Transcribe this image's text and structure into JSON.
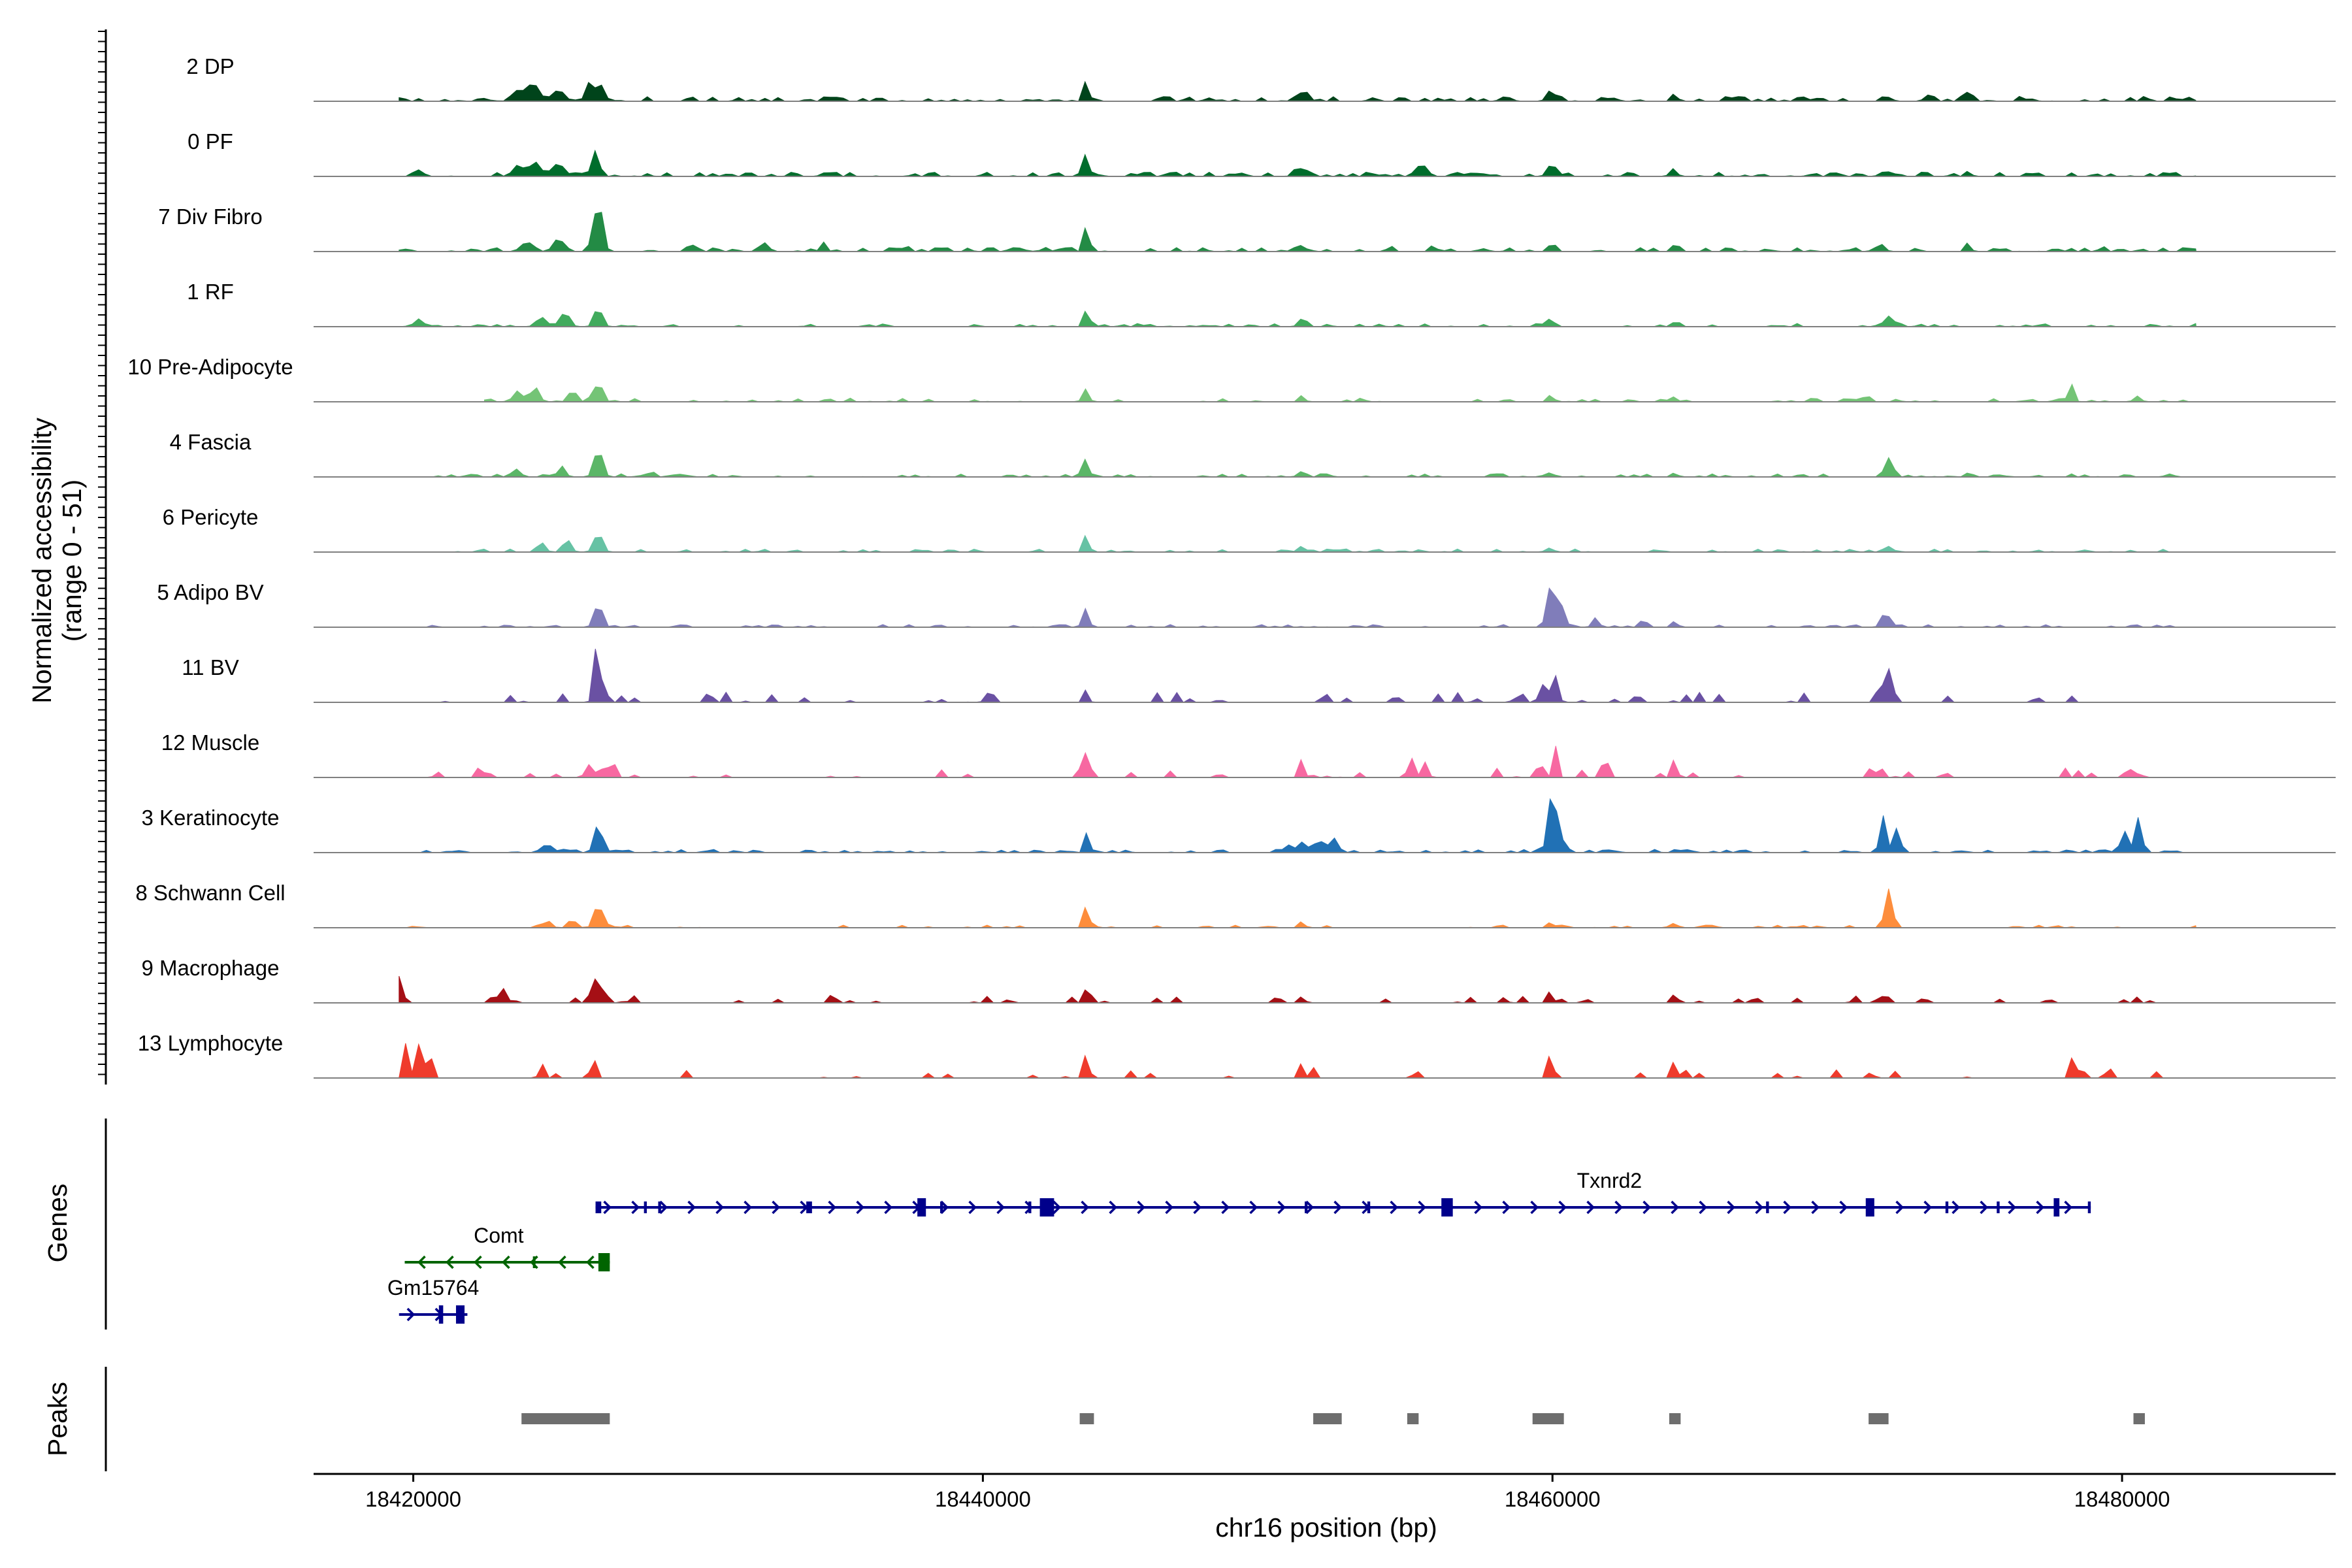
{
  "chart_data": {
    "type": "area",
    "title": "",
    "ylabel_line1": "Normalized accessibility",
    "ylabel_line2": "(range 0 - 51)",
    "y_range": [
      0,
      51
    ],
    "xlabel": "chr16 position (bp)",
    "xlim": [
      18416500,
      18487500
    ],
    "x_ticks": [
      18420000,
      18440000,
      18460000,
      18480000
    ],
    "x_tick_labels": [
      "18420000",
      "18440000",
      "18460000",
      "18480000"
    ],
    "genes_label": "Genes",
    "peaks_label": "Peaks",
    "tracks": [
      {
        "name": "2 DP",
        "color": "#00441B",
        "range": [
          18419500,
          18482600
        ],
        "noise": 0.09,
        "dense": 0.55,
        "peaks": [
          [
            18423700,
            0.18,
            300
          ],
          [
            18424200,
            0.25,
            300
          ],
          [
            18425100,
            0.22,
            250
          ],
          [
            18426200,
            0.34,
            200
          ],
          [
            18426600,
            0.24,
            200
          ],
          [
            18443650,
            0.48,
            120
          ],
          [
            18451200,
            0.16,
            300
          ],
          [
            18459950,
            0.22,
            200
          ],
          [
            18464300,
            0.1,
            150
          ],
          [
            18471700,
            0.1,
            200
          ],
          [
            18473200,
            0.12,
            200
          ],
          [
            18474600,
            0.1,
            150
          ],
          [
            18476500,
            0.08,
            150
          ],
          [
            18480800,
            0.1,
            150
          ]
        ]
      },
      {
        "name": "0 PF",
        "color": "#006D2C",
        "range": [
          18419500,
          18482600
        ],
        "noise": 0.08,
        "dense": 0.55,
        "peaks": [
          [
            18420200,
            0.1,
            250
          ],
          [
            18423700,
            0.18,
            300
          ],
          [
            18424300,
            0.22,
            300
          ],
          [
            18425100,
            0.2,
            250
          ],
          [
            18426400,
            0.42,
            200
          ],
          [
            18443650,
            0.45,
            120
          ],
          [
            18451200,
            0.15,
            300
          ],
          [
            18455400,
            0.2,
            200
          ],
          [
            18459950,
            0.2,
            200
          ],
          [
            18464300,
            0.09,
            150
          ],
          [
            18471600,
            0.08,
            200
          ],
          [
            18474600,
            0.1,
            150
          ]
        ]
      },
      {
        "name": "7 Div Fibro",
        "color": "#238B45",
        "range": [
          18419500,
          18482600
        ],
        "noise": 0.08,
        "dense": 0.45,
        "peaks": [
          [
            18424000,
            0.18,
            300
          ],
          [
            18425100,
            0.25,
            250
          ],
          [
            18426500,
            1.0,
            200
          ],
          [
            18429800,
            0.12,
            200
          ],
          [
            18432400,
            0.18,
            150
          ],
          [
            18434400,
            0.18,
            150
          ],
          [
            18437300,
            0.14,
            150
          ],
          [
            18443650,
            0.58,
            120
          ],
          [
            18451200,
            0.12,
            200
          ],
          [
            18454300,
            0.12,
            150
          ],
          [
            18455800,
            0.12,
            150
          ],
          [
            18459950,
            0.14,
            150
          ],
          [
            18464300,
            0.12,
            150
          ],
          [
            18471600,
            0.12,
            150
          ],
          [
            18474600,
            0.1,
            150
          ],
          [
            18479300,
            0.1,
            150
          ]
        ]
      },
      {
        "name": "1 RF",
        "color": "#41AB5D",
        "range": [
          18419500,
          18482600
        ],
        "noise": 0.06,
        "dense": 0.4,
        "peaks": [
          [
            18420200,
            0.12,
            250
          ],
          [
            18424500,
            0.18,
            250
          ],
          [
            18425300,
            0.22,
            250
          ],
          [
            18426500,
            0.32,
            200
          ],
          [
            18443650,
            0.38,
            120
          ],
          [
            18451200,
            0.1,
            200
          ],
          [
            18459950,
            0.12,
            150
          ],
          [
            18464300,
            0.08,
            150
          ],
          [
            18471800,
            0.2,
            200
          ],
          [
            18482600,
            0.06,
            150
          ]
        ]
      },
      {
        "name": "10 Pre-Adipocyte",
        "color": "#74C476",
        "range": [
          18422500,
          18482600
        ],
        "noise": 0.07,
        "dense": 0.4,
        "peaks": [
          [
            18423700,
            0.22,
            200
          ],
          [
            18424300,
            0.22,
            200
          ],
          [
            18425600,
            0.22,
            200
          ],
          [
            18426500,
            0.36,
            200
          ],
          [
            18443650,
            0.28,
            120
          ],
          [
            18451200,
            0.12,
            150
          ],
          [
            18459950,
            0.14,
            150
          ],
          [
            18464300,
            0.08,
            150
          ],
          [
            18471100,
            0.1,
            150
          ],
          [
            18478200,
            0.3,
            150
          ],
          [
            18480600,
            0.07,
            150
          ]
        ]
      },
      {
        "name": "4 Fascia",
        "color": "#5BB667",
        "range": [
          18419500,
          18482600
        ],
        "noise": 0.06,
        "dense": 0.4,
        "peaks": [
          [
            18423600,
            0.12,
            250
          ],
          [
            18425200,
            0.16,
            200
          ],
          [
            18426500,
            0.55,
            200
          ],
          [
            18428400,
            0.1,
            150
          ],
          [
            18443650,
            0.42,
            120
          ],
          [
            18451200,
            0.1,
            200
          ],
          [
            18459950,
            0.1,
            150
          ],
          [
            18464300,
            0.08,
            150
          ],
          [
            18471800,
            0.35,
            200
          ],
          [
            18474600,
            0.08,
            150
          ]
        ]
      },
      {
        "name": "6 Pericyte",
        "color": "#66C2A4",
        "range": [
          18419500,
          18482600
        ],
        "noise": 0.06,
        "dense": 0.35,
        "peaks": [
          [
            18424500,
            0.14,
            200
          ],
          [
            18425400,
            0.2,
            200
          ],
          [
            18426500,
            0.38,
            200
          ],
          [
            18443650,
            0.38,
            120
          ],
          [
            18451200,
            0.1,
            200
          ],
          [
            18459950,
            0.08,
            150
          ],
          [
            18471700,
            0.1,
            150
          ]
        ]
      },
      {
        "name": "5 Adipo BV",
        "color": "#807DBA",
        "range": [
          18420200,
          18482600
        ],
        "noise": 0.05,
        "dense": 0.35,
        "peaks": [
          [
            18426500,
            0.42,
            200
          ],
          [
            18443650,
            0.42,
            120
          ],
          [
            18459950,
            0.8,
            200
          ],
          [
            18460300,
            0.4,
            200
          ],
          [
            18461500,
            0.18,
            150
          ],
          [
            18463200,
            0.18,
            150
          ],
          [
            18464300,
            0.12,
            150
          ],
          [
            18471700,
            0.28,
            200
          ]
        ]
      },
      {
        "name": "11 BV",
        "color": "#6A51A3",
        "range": [
          18420200,
          18478600
        ],
        "noise": 0.2,
        "dense": 0.18,
        "peaks": [
          [
            18426400,
            1.0,
            120
          ],
          [
            18426700,
            0.6,
            120
          ],
          [
            18443650,
            0.3,
            100
          ],
          [
            18452000,
            0.18,
            150
          ],
          [
            18454500,
            0.15,
            150
          ],
          [
            18459700,
            0.35,
            200
          ],
          [
            18460100,
            0.5,
            150
          ],
          [
            18463000,
            0.15,
            150
          ],
          [
            18471500,
            0.45,
            150
          ],
          [
            18471900,
            0.7,
            120
          ],
          [
            18477000,
            0.12,
            150
          ]
        ]
      },
      {
        "name": "12 Muscle",
        "color": "#F768A1",
        "range": [
          18420200,
          18482600
        ],
        "noise": 0.18,
        "dense": 0.15,
        "peaks": [
          [
            18426200,
            0.25,
            200
          ],
          [
            18426900,
            0.2,
            200
          ],
          [
            18443650,
            0.55,
            120
          ],
          [
            18451200,
            0.2,
            150
          ],
          [
            18455000,
            0.5,
            120
          ],
          [
            18455500,
            0.3,
            150
          ],
          [
            18459550,
            0.45,
            120
          ],
          [
            18460100,
            0.6,
            120
          ],
          [
            18461900,
            0.3,
            150
          ],
          [
            18464300,
            0.4,
            120
          ]
        ]
      },
      {
        "name": "3 Keratinocyte",
        "color": "#2171B5",
        "range": [
          18420000,
          18482600
        ],
        "noise": 0.06,
        "dense": 0.5,
        "peaks": [
          [
            18424700,
            0.15,
            300
          ],
          [
            18426500,
            0.5,
            200
          ],
          [
            18443650,
            0.38,
            120
          ],
          [
            18450700,
            0.15,
            200
          ],
          [
            18451200,
            0.18,
            200
          ],
          [
            18451800,
            0.25,
            200
          ],
          [
            18452300,
            0.3,
            150
          ],
          [
            18459950,
            1.0,
            180
          ],
          [
            18460200,
            0.5,
            200
          ],
          [
            18471600,
            0.7,
            150
          ],
          [
            18472100,
            0.45,
            150
          ],
          [
            18480100,
            0.4,
            200
          ],
          [
            18480600,
            0.7,
            150
          ]
        ]
      },
      {
        "name": "8 Schwann Cell",
        "color": "#FD8D3C",
        "range": [
          18419500,
          18482600
        ],
        "noise": 0.05,
        "dense": 0.25,
        "peaks": [
          [
            18424700,
            0.14,
            200
          ],
          [
            18425600,
            0.14,
            200
          ],
          [
            18426500,
            0.45,
            200
          ],
          [
            18443650,
            0.5,
            120
          ],
          [
            18451200,
            0.12,
            150
          ],
          [
            18459950,
            0.12,
            150
          ],
          [
            18464300,
            0.1,
            150
          ],
          [
            18471800,
            0.72,
            180
          ]
        ]
      },
      {
        "name": "9 Macrophage",
        "color": "#A50F15",
        "range": [
          18419500,
          18482600
        ],
        "noise": 0.14,
        "dense": 0.25,
        "peaks": [
          [
            18419500,
            0.5,
            120
          ],
          [
            18423200,
            0.28,
            150
          ],
          [
            18426400,
            0.45,
            150
          ],
          [
            18426700,
            0.3,
            150
          ],
          [
            18443650,
            0.32,
            120
          ],
          [
            18451200,
            0.12,
            150
          ],
          [
            18459950,
            0.12,
            150
          ],
          [
            18464300,
            0.18,
            150
          ],
          [
            18471700,
            0.18,
            150
          ]
        ]
      },
      {
        "name": "13 Lymphocyte",
        "color": "#EF3B2C",
        "range": [
          18419500,
          18482600
        ],
        "noise": 0.18,
        "dense": 0.1,
        "peaks": [
          [
            18419700,
            0.55,
            100
          ],
          [
            18420100,
            0.75,
            100
          ],
          [
            18420300,
            1.0,
            100
          ],
          [
            18420600,
            0.45,
            100
          ],
          [
            18424500,
            0.3,
            120
          ],
          [
            18426300,
            0.25,
            150
          ],
          [
            18443650,
            0.55,
            120
          ],
          [
            18451200,
            0.3,
            120
          ],
          [
            18451600,
            0.2,
            120
          ],
          [
            18455200,
            0.2,
            120
          ],
          [
            18459950,
            0.6,
            120
          ],
          [
            18464300,
            0.4,
            120
          ],
          [
            18471200,
            0.15,
            120
          ],
          [
            18478200,
            0.4,
            100
          ],
          [
            18481200,
            0.12,
            120
          ]
        ]
      }
    ],
    "genes": [
      {
        "name": "Txnrd2",
        "strand": "+",
        "start": 18426400,
        "end": 18478900,
        "color": "#00008B",
        "row": 0,
        "label_x": 18462000,
        "exons": [
          [
            18426400,
            18426600,
            0.45
          ],
          [
            18428100,
            18428200,
            0.45
          ],
          [
            18428600,
            18428700,
            0.45
          ],
          [
            18433800,
            18434000,
            0.45
          ],
          [
            18437700,
            18438000,
            0.7
          ],
          [
            18438500,
            18438600,
            0.45
          ],
          [
            18441600,
            18441700,
            0.45
          ],
          [
            18442000,
            18442500,
            0.7
          ],
          [
            18451300,
            18451400,
            0.45
          ],
          [
            18453500,
            18453600,
            0.45
          ],
          [
            18456100,
            18456500,
            0.7
          ],
          [
            18467500,
            18467600,
            0.45
          ],
          [
            18471000,
            18471300,
            0.7
          ],
          [
            18473800,
            18473900,
            0.45
          ],
          [
            18475600,
            18475700,
            0.45
          ],
          [
            18477600,
            18477800,
            0.7
          ],
          [
            18478800,
            18478900,
            0.45
          ]
        ]
      },
      {
        "name": "Comt",
        "strand": "-",
        "start": 18419700,
        "end": 18426900,
        "color": "#006400",
        "row": 1,
        "label_x": 18423000,
        "exons": [
          [
            18426500,
            18426900,
            0.7
          ],
          [
            18424200,
            18424250,
            0.45
          ]
        ]
      },
      {
        "name": "Gm15764",
        "strand": "+",
        "start": 18419500,
        "end": 18421900,
        "color": "#00008B",
        "row": 2,
        "label_x": 18420700,
        "exons": [
          [
            18420900,
            18421050,
            0.7
          ],
          [
            18421500,
            18421800,
            0.7
          ]
        ]
      }
    ],
    "peaks": [
      [
        18423800,
        18426900
      ],
      [
        18443400,
        18443900
      ],
      [
        18451600,
        18452600
      ],
      [
        18454900,
        18455300
      ],
      [
        18459300,
        18460400
      ],
      [
        18464100,
        18464500
      ],
      [
        18471100,
        18471800
      ],
      [
        18480400,
        18480800
      ]
    ]
  }
}
